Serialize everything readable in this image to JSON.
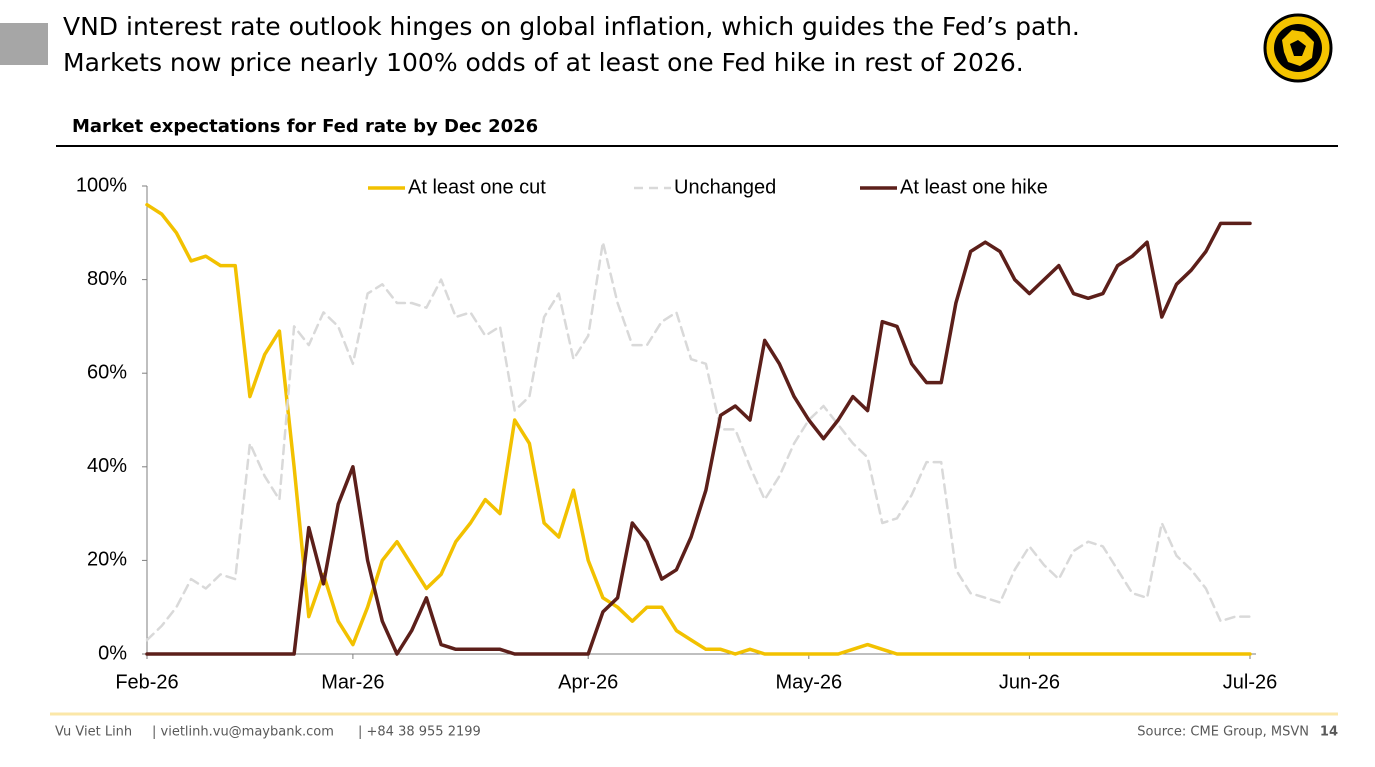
{
  "header": {
    "title": [
      "VND interest rate outlook hinges on global inflation, which guides the Fed’s path.",
      "Markets now price nearly 100% odds of at least one Fed hike in rest of 2026."
    ]
  },
  "chart_data": {
    "type": "line",
    "title": "Market expectations for Fed rate by Dec 2026",
    "categories": [
      "Feb-26",
      null,
      null,
      null,
      null,
      null,
      null,
      null,
      null,
      null,
      null,
      null,
      null,
      null,
      "Mar-26",
      null,
      null,
      null,
      null,
      null,
      null,
      null,
      null,
      null,
      null,
      null,
      null,
      null,
      null,
      null,
      "Apr-26",
      null,
      null,
      null,
      null,
      null,
      null,
      null,
      null,
      null,
      null,
      null,
      null,
      null,
      null,
      "May-26",
      null,
      null,
      null,
      null,
      null,
      null,
      null,
      null,
      null,
      null,
      null,
      null,
      null,
      null,
      "Jun-26",
      null,
      null,
      null,
      null,
      null,
      null,
      null,
      null,
      null,
      null,
      null,
      null,
      null,
      null,
      "Jul-26"
    ],
    "series": [
      {
        "name": "At least one cut",
        "color": "#f2c100",
        "dashed": false,
        "values": [
          96,
          94,
          90,
          84,
          85,
          83,
          83,
          55,
          64,
          69,
          40,
          8,
          17,
          7,
          2,
          10,
          20,
          24,
          19,
          14,
          17,
          24,
          28,
          33,
          30,
          50,
          45,
          28,
          25,
          35,
          20,
          12,
          10,
          7,
          10,
          10,
          5,
          3,
          1,
          1,
          0,
          1,
          0,
          0,
          0,
          0,
          0,
          0,
          1,
          2,
          1,
          0,
          0,
          0,
          0,
          0,
          0,
          0,
          0,
          0,
          0,
          0,
          0,
          0,
          0,
          0,
          0,
          0,
          0,
          0,
          0,
          0,
          0,
          0,
          0,
          0
        ]
      },
      {
        "name": "Unchanged",
        "color": "#d9d9d9",
        "dashed": true,
        "values": [
          3,
          6,
          10,
          16,
          14,
          17,
          16,
          45,
          38,
          33,
          70,
          66,
          73,
          70,
          62,
          77,
          79,
          75,
          75,
          74,
          80,
          72,
          73,
          68,
          70,
          52,
          55,
          72,
          77,
          63,
          68,
          88,
          75,
          66,
          66,
          71,
          73,
          63,
          62,
          48,
          48,
          40,
          33,
          38,
          45,
          50,
          53,
          49,
          45,
          42,
          28,
          29,
          34,
          41,
          41,
          18,
          13,
          12,
          11,
          18,
          23,
          19,
          16,
          22,
          24,
          23,
          18,
          13,
          12,
          28,
          21,
          18,
          14,
          7,
          8,
          8
        ]
      },
      {
        "name": "At least one hike",
        "color": "#5c1f1a",
        "dashed": false,
        "values": [
          0,
          0,
          0,
          0,
          0,
          0,
          0,
          0,
          0,
          0,
          0,
          27,
          15,
          32,
          40,
          20,
          7,
          0,
          5,
          12,
          2,
          1,
          1,
          1,
          1,
          0,
          0,
          0,
          0,
          0,
          0,
          9,
          12,
          28,
          24,
          16,
          18,
          25,
          35,
          51,
          53,
          50,
          67,
          62,
          55,
          50,
          46,
          50,
          55,
          52,
          71,
          70,
          62,
          58,
          58,
          75,
          86,
          88,
          86,
          80,
          77,
          80,
          83,
          77,
          76,
          77,
          83,
          85,
          88,
          72,
          79,
          82,
          86,
          92,
          92,
          92
        ]
      }
    ],
    "ylim": [
      0,
      100
    ],
    "yticks": [
      {
        "value": 0,
        "label": "0%"
      },
      {
        "value": 20,
        "label": "20%"
      },
      {
        "value": 40,
        "label": "40%"
      },
      {
        "value": 60,
        "label": "60%"
      },
      {
        "value": 80,
        "label": "80%"
      },
      {
        "value": 100,
        "label": "100%"
      }
    ],
    "grid": false
  },
  "footer": {
    "author": "Vu Viet Linh",
    "email": "| vietlinh.vu@maybank.com",
    "phone": "| +84 38 955 2199",
    "source": "Source: CME Group, MSVN",
    "page": "14"
  }
}
